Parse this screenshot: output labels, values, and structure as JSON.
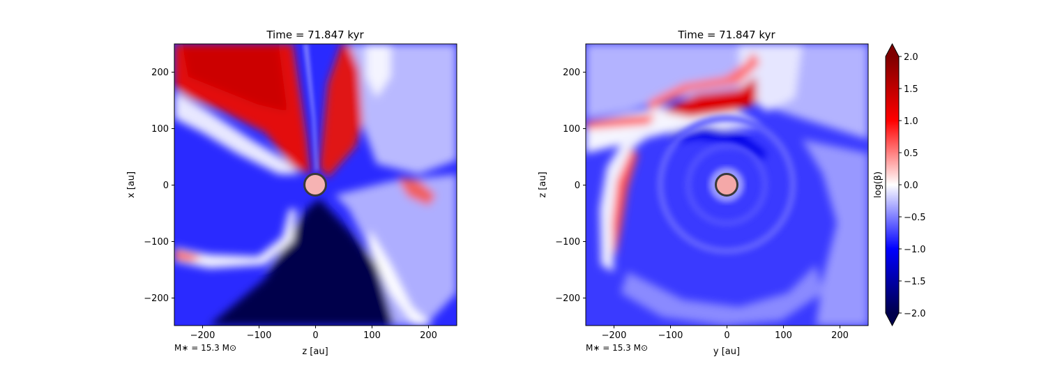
{
  "chart_data": [
    {
      "type": "heatmap",
      "panel": "left",
      "title": "Time = 71.847 kyr",
      "xlabel": "z [au]",
      "ylabel": "x [au]",
      "xlim": [
        -250,
        250
      ],
      "ylim": [
        -250,
        250
      ],
      "xticks": [
        -200,
        -100,
        0,
        100,
        200
      ],
      "yticks": [
        -200,
        -100,
        0,
        100,
        200
      ],
      "xtick_labels": [
        "−200",
        "−100",
        "0",
        "100",
        "200"
      ],
      "ytick_labels": [
        "−200",
        "−100",
        "0",
        "100",
        "200"
      ],
      "annotation": "M∗ = 15.3 M⊙",
      "circle_center": [
        0,
        0
      ],
      "circle_radius": 20,
      "colorscale_variable": "log(β)"
    },
    {
      "type": "heatmap",
      "panel": "right",
      "title": "Time = 71.847 kyr",
      "xlabel": "y [au]",
      "ylabel": "z [au]",
      "xlim": [
        -250,
        250
      ],
      "ylim": [
        -250,
        250
      ],
      "xticks": [
        -200,
        -100,
        0,
        100,
        200
      ],
      "yticks": [
        -200,
        -100,
        0,
        100,
        200
      ],
      "xtick_labels": [
        "−200",
        "−100",
        "0",
        "100",
        "200"
      ],
      "ytick_labels": [
        "−200",
        "−100",
        "0",
        "100",
        "200"
      ],
      "annotation": "M∗ = 15.3 M⊙",
      "circle_center": [
        0,
        0
      ],
      "circle_radius": 20,
      "colorscale_variable": "log(β)"
    }
  ],
  "colorbar": {
    "label": "log(β)",
    "range": [
      -2.0,
      2.0
    ],
    "ticks": [
      2.0,
      1.5,
      1.0,
      0.5,
      0.0,
      -0.5,
      -1.0,
      -1.5,
      -2.0
    ],
    "tick_labels": [
      "2.0",
      "1.5",
      "1.0",
      "0.5",
      "0.0",
      "−0.5",
      "−1.0",
      "−1.5",
      "−2.0"
    ],
    "extend": "both",
    "colormap": "seismic",
    "colors": {
      "low": "#00004c",
      "mid_low": "#0000ff",
      "mid": "#ffffff",
      "mid_high": "#ff0000",
      "high": "#7f0000"
    }
  }
}
